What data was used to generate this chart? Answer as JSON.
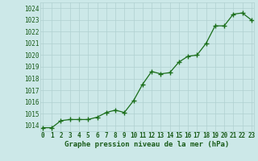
{
  "x": [
    0,
    1,
    2,
    3,
    4,
    5,
    6,
    7,
    8,
    9,
    10,
    11,
    12,
    13,
    14,
    15,
    16,
    17,
    18,
    19,
    20,
    21,
    22,
    23
  ],
  "y": [
    1013.8,
    1013.8,
    1014.4,
    1014.5,
    1014.5,
    1014.5,
    1014.7,
    1015.1,
    1015.3,
    1015.1,
    1016.1,
    1017.5,
    1018.6,
    1018.4,
    1018.5,
    1019.4,
    1019.9,
    1020.0,
    1021.0,
    1022.5,
    1022.5,
    1023.5,
    1023.6,
    1023.0
  ],
  "line_color": "#1a6e1a",
  "marker": "+",
  "marker_size": 4,
  "bg_color": "#cce8e8",
  "grid_color": "#b0d0d0",
  "title": "Graphe pression niveau de la mer (hPa)",
  "title_color": "#1a5c1a",
  "yticks": [
    1014,
    1015,
    1016,
    1017,
    1018,
    1019,
    1020,
    1021,
    1022,
    1023,
    1024
  ],
  "xticks": [
    0,
    1,
    2,
    3,
    4,
    5,
    6,
    7,
    8,
    9,
    10,
    11,
    12,
    13,
    14,
    15,
    16,
    17,
    18,
    19,
    20,
    21,
    22,
    23
  ],
  "ylim": [
    1013.5,
    1024.5
  ],
  "xlim": [
    -0.3,
    23.3
  ],
  "tick_color": "#1a5c1a",
  "tick_fontsize": 5.5,
  "title_fontsize": 6.5,
  "linewidth": 0.9,
  "marker_linewidth": 1.0
}
